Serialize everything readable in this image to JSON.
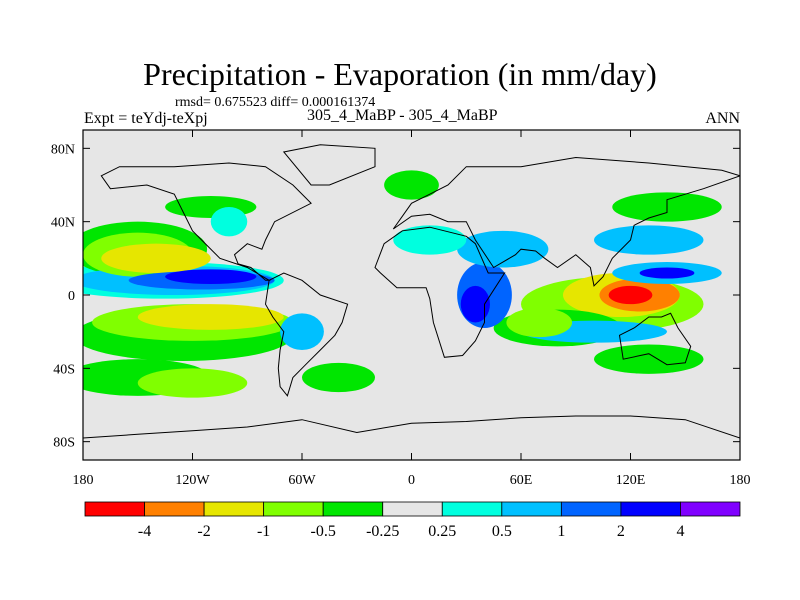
{
  "title": "Precipitation - Evaporation (in mm/day)",
  "stats": "rmsd= 0.675523 diff= 0.000161374",
  "expt_label": "Expt = teYdj-teXpj",
  "case_label": "305_4_MaBP - 305_4_MaBP",
  "season": "ANN",
  "chart_data": {
    "type": "heatmap",
    "xlim": [
      -180,
      180
    ],
    "ylim": [
      -90,
      90
    ],
    "x_ticks": [
      -180,
      -120,
      -60,
      0,
      60,
      120,
      180
    ],
    "x_tick_labels": [
      "180",
      "120W",
      "60W",
      "0",
      "60E",
      "120E",
      "180"
    ],
    "y_ticks": [
      80,
      40,
      0,
      -40,
      -80
    ],
    "y_tick_labels": [
      "80N",
      "40N",
      "0",
      "40S",
      "80S"
    ],
    "colorbar": {
      "colors": [
        "#ff0000",
        "#ff8000",
        "#e6e600",
        "#80ff00",
        "#00e600",
        "#e6e6e6",
        "#00ffdf",
        "#00c0ff",
        "#0064ff",
        "#0000ff",
        "#8000ff"
      ],
      "levels": [
        -4,
        -2,
        -1,
        -0.5,
        -0.25,
        0.25,
        0.5,
        1,
        2,
        4
      ],
      "level_labels": [
        "-4",
        "-2",
        "-1",
        "-0.5",
        "-0.25",
        "0.25",
        "0.5",
        "1",
        "2",
        "4"
      ]
    },
    "field_regions": [
      {
        "lon": 120,
        "lat": 0,
        "rlon": 12,
        "rlat": 5,
        "value": -5
      },
      {
        "lon": 125,
        "lat": 0,
        "rlon": 22,
        "rlat": 9,
        "value": -3
      },
      {
        "lon": 115,
        "lat": 0,
        "rlon": 32,
        "rlat": 12,
        "value": -1.5
      },
      {
        "lon": 110,
        "lat": -5,
        "rlon": 50,
        "rlat": 15,
        "value": -0.7
      },
      {
        "lon": 70,
        "lat": -15,
        "rlon": 18,
        "rlat": 8,
        "value": -0.7
      },
      {
        "lon": 80,
        "lat": -18,
        "rlon": 35,
        "rlat": 10,
        "value": -0.35
      },
      {
        "lon": -140,
        "lat": 20,
        "rlon": 30,
        "rlat": 8,
        "value": -1.5
      },
      {
        "lon": -150,
        "lat": 22,
        "rlon": 30,
        "rlat": 12,
        "value": -0.7
      },
      {
        "lon": -150,
        "lat": 25,
        "rlon": 38,
        "rlat": 15,
        "value": -0.35
      },
      {
        "lon": -110,
        "lat": -12,
        "rlon": 40,
        "rlat": 7,
        "value": -1.5
      },
      {
        "lon": -120,
        "lat": -15,
        "rlon": 55,
        "rlat": 10,
        "value": -0.7
      },
      {
        "lon": -125,
        "lat": -22,
        "rlon": 60,
        "rlat": 14,
        "value": -0.35
      },
      {
        "lon": -150,
        "lat": -45,
        "rlon": 40,
        "rlat": 10,
        "value": -0.35
      },
      {
        "lon": -120,
        "lat": -48,
        "rlon": 30,
        "rlat": 8,
        "value": -0.7
      },
      {
        "lon": 140,
        "lat": 48,
        "rlon": 30,
        "rlat": 8,
        "value": -0.35
      },
      {
        "lon": -110,
        "lat": 48,
        "rlon": 25,
        "rlat": 6,
        "value": -0.35
      },
      {
        "lon": -40,
        "lat": -45,
        "rlon": 20,
        "rlat": 8,
        "value": -0.35
      },
      {
        "lon": 130,
        "lat": -35,
        "rlon": 30,
        "rlat": 8,
        "value": -0.35
      },
      {
        "lon": 0,
        "lat": 60,
        "rlon": 15,
        "rlat": 8,
        "value": -0.35
      },
      {
        "lon": -115,
        "lat": 8,
        "rlon": 40,
        "rlat": 5,
        "value": 1.5
      },
      {
        "lon": -110,
        "lat": 10,
        "rlon": 25,
        "rlat": 4,
        "value": 2.5
      },
      {
        "lon": -130,
        "lat": 8,
        "rlon": 55,
        "rlat": 8,
        "value": 0.7
      },
      {
        "lon": -135,
        "lat": 8,
        "rlon": 65,
        "rlat": 10,
        "value": 0.35
      },
      {
        "lon": 40,
        "lat": 0,
        "rlon": 15,
        "rlat": 18,
        "value": 1.5
      },
      {
        "lon": 35,
        "lat": -5,
        "rlon": 8,
        "rlat": 10,
        "value": 2.5
      },
      {
        "lon": 50,
        "lat": 25,
        "rlon": 25,
        "rlat": 10,
        "value": 0.7
      },
      {
        "lon": 130,
        "lat": 30,
        "rlon": 30,
        "rlat": 8,
        "value": 0.7
      },
      {
        "lon": 140,
        "lat": 12,
        "rlon": 30,
        "rlat": 6,
        "value": 0.7
      },
      {
        "lon": 140,
        "lat": 12,
        "rlon": 15,
        "rlat": 3,
        "value": 2.5
      },
      {
        "lon": 100,
        "lat": -20,
        "rlon": 40,
        "rlat": 6,
        "value": 0.7
      },
      {
        "lon": -60,
        "lat": -20,
        "rlon": 12,
        "rlat": 10,
        "value": 0.7
      },
      {
        "lon": -100,
        "lat": 40,
        "rlon": 10,
        "rlat": 8,
        "value": 0.35
      },
      {
        "lon": 10,
        "lat": 30,
        "rlon": 20,
        "rlat": 8,
        "value": 0.35
      }
    ],
    "land_outlines": [
      [
        [
          -170,
          65
        ],
        [
          -160,
          70
        ],
        [
          -130,
          70
        ],
        [
          -100,
          72
        ],
        [
          -80,
          70
        ],
        [
          -65,
          60
        ],
        [
          -55,
          50
        ],
        [
          -75,
          40
        ],
        [
          -80,
          30
        ],
        [
          -82,
          25
        ],
        [
          -90,
          28
        ],
        [
          -97,
          22
        ],
        [
          -95,
          17
        ],
        [
          -88,
          15
        ],
        [
          -80,
          8
        ],
        [
          -78,
          8
        ],
        [
          -90,
          15
        ],
        [
          -105,
          20
        ],
        [
          -115,
          30
        ],
        [
          -120,
          35
        ],
        [
          -125,
          45
        ],
        [
          -130,
          55
        ],
        [
          -145,
          60
        ],
        [
          -165,
          58
        ],
        [
          -170,
          65
        ]
      ],
      [
        [
          -78,
          8
        ],
        [
          -70,
          12
        ],
        [
          -60,
          8
        ],
        [
          -50,
          0
        ],
        [
          -35,
          -5
        ],
        [
          -38,
          -15
        ],
        [
          -42,
          -22
        ],
        [
          -50,
          -30
        ],
        [
          -58,
          -38
        ],
        [
          -65,
          -45
        ],
        [
          -68,
          -55
        ],
        [
          -72,
          -50
        ],
        [
          -73,
          -40
        ],
        [
          -72,
          -30
        ],
        [
          -70,
          -20
        ],
        [
          -76,
          -12
        ],
        [
          -80,
          -5
        ],
        [
          -78,
          8
        ]
      ],
      [
        [
          -20,
          15
        ],
        [
          -15,
          28
        ],
        [
          -5,
          35
        ],
        [
          10,
          37
        ],
        [
          30,
          32
        ],
        [
          35,
          28
        ],
        [
          42,
          12
        ],
        [
          51,
          12
        ],
        [
          40,
          -5
        ],
        [
          40,
          -15
        ],
        [
          35,
          -25
        ],
        [
          28,
          -33
        ],
        [
          18,
          -34
        ],
        [
          12,
          -15
        ],
        [
          10,
          -2
        ],
        [
          8,
          4
        ],
        [
          -8,
          4
        ],
        [
          -17,
          12
        ],
        [
          -20,
          15
        ]
      ],
      [
        [
          -10,
          36
        ],
        [
          -5,
          43
        ],
        [
          0,
          50
        ],
        [
          10,
          55
        ],
        [
          20,
          60
        ],
        [
          30,
          70
        ],
        [
          60,
          70
        ],
        [
          90,
          75
        ],
        [
          130,
          72
        ],
        [
          170,
          68
        ],
        [
          180,
          65
        ],
        [
          160,
          58
        ],
        [
          140,
          52
        ],
        [
          140,
          45
        ],
        [
          130,
          42
        ],
        [
          122,
          38
        ],
        [
          120,
          30
        ],
        [
          110,
          20
        ],
        [
          105,
          10
        ],
        [
          100,
          5
        ],
        [
          98,
          15
        ],
        [
          90,
          22
        ],
        [
          80,
          15
        ],
        [
          73,
          20
        ],
        [
          68,
          24
        ],
        [
          60,
          25
        ],
        [
          57,
          22
        ],
        [
          45,
          15
        ],
        [
          35,
          30
        ],
        [
          30,
          40
        ],
        [
          20,
          40
        ],
        [
          10,
          44
        ],
        [
          0,
          43
        ],
        [
          -10,
          36
        ]
      ],
      [
        [
          114,
          -22
        ],
        [
          122,
          -18
        ],
        [
          130,
          -12
        ],
        [
          137,
          -12
        ],
        [
          142,
          -10
        ],
        [
          146,
          -18
        ],
        [
          153,
          -28
        ],
        [
          150,
          -37
        ],
        [
          140,
          -38
        ],
        [
          130,
          -32
        ],
        [
          116,
          -35
        ],
        [
          114,
          -22
        ]
      ],
      [
        [
          -55,
          60
        ],
        [
          -45,
          60
        ],
        [
          -20,
          70
        ],
        [
          -20,
          80
        ],
        [
          -50,
          82
        ],
        [
          -70,
          78
        ],
        [
          -55,
          60
        ]
      ],
      [
        [
          -180,
          -78
        ],
        [
          -150,
          -76
        ],
        [
          -120,
          -74
        ],
        [
          -90,
          -72
        ],
        [
          -60,
          -68
        ],
        [
          -30,
          -75
        ],
        [
          0,
          -70
        ],
        [
          30,
          -69
        ],
        [
          60,
          -67
        ],
        [
          90,
          -66
        ],
        [
          120,
          -66
        ],
        [
          150,
          -68
        ],
        [
          180,
          -78
        ],
        [
          180,
          -90
        ],
        [
          -180,
          -90
        ],
        [
          -180,
          -78
        ]
      ]
    ]
  }
}
